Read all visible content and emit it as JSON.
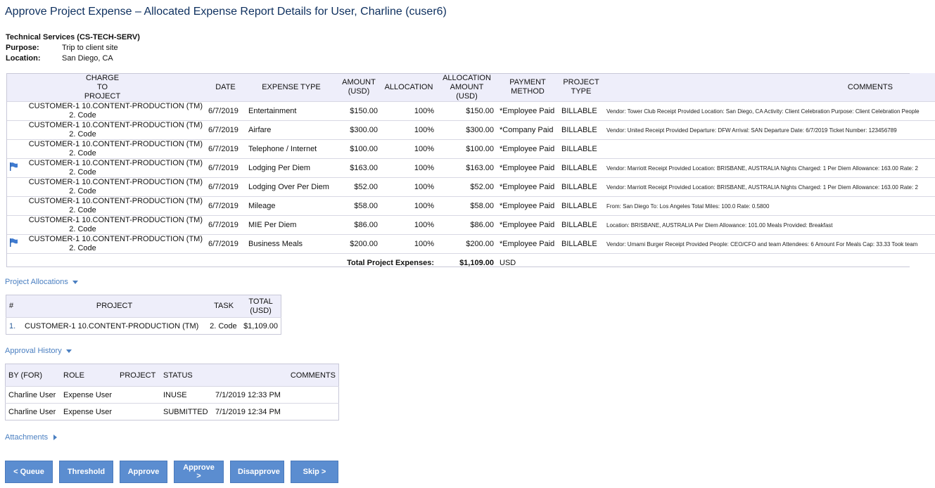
{
  "page": {
    "title": "Approve Project Expense – Allocated Expense Report Details for User, Charline (cuser6)"
  },
  "info": {
    "org": "Technical Services (CS-TECH-SERV)",
    "purpose_label": "Purpose:",
    "purpose": "Trip to client site",
    "location_label": "Location:",
    "location": "San Diego, CA"
  },
  "expense_table": {
    "headers": {
      "charge": "CHARGE TO PROJECT",
      "date": "DATE",
      "type": "EXPENSE TYPE",
      "amount": "AMOUNT (USD)",
      "allocation": "ALLOCATION",
      "alloc_amount": "ALLOCATION AMOUNT (USD)",
      "payment": "PAYMENT METHOD",
      "project_type": "PROJECT TYPE",
      "comments": "COMMENTS"
    },
    "rows": [
      {
        "flag": false,
        "project": "CUSTOMER-1 10.CONTENT-PRODUCTION (TM)",
        "task": "2. Code",
        "date": "6/7/2019",
        "type": "Entertainment",
        "amount": "$150.00",
        "allocation": "100%",
        "alloc_amount": "$150.00",
        "payment": "*Employee Paid",
        "project_type": "BILLABLE",
        "comments": "Vendor: Tower Club Receipt Provided Location: San Diego, CA Activity: Client Celebration Purpose: Client Celebration People"
      },
      {
        "flag": false,
        "project": "CUSTOMER-1 10.CONTENT-PRODUCTION (TM)",
        "task": "2. Code",
        "date": "6/7/2019",
        "type": "Airfare",
        "amount": "$300.00",
        "allocation": "100%",
        "alloc_amount": "$300.00",
        "payment": "*Company Paid",
        "project_type": "BILLABLE",
        "comments": "Vendor: United Receipt Provided Departure: DFW Arrival: SAN Departure Date: 6/7/2019 Ticket Number: 123456789"
      },
      {
        "flag": false,
        "project": "CUSTOMER-1 10.CONTENT-PRODUCTION (TM)",
        "task": "2. Code",
        "date": "6/7/2019",
        "type": "Telephone / Internet",
        "amount": "$100.00",
        "allocation": "100%",
        "alloc_amount": "$100.00",
        "payment": "*Employee Paid",
        "project_type": "BILLABLE",
        "comments": ""
      },
      {
        "flag": true,
        "project": "CUSTOMER-1 10.CONTENT-PRODUCTION (TM)",
        "task": "2. Code",
        "date": "6/7/2019",
        "type": "Lodging Per Diem",
        "amount": "$163.00",
        "allocation": "100%",
        "alloc_amount": "$163.00",
        "payment": "*Employee Paid",
        "project_type": "BILLABLE",
        "comments": "Vendor: Marriott Receipt Provided Location: BRISBANE, AUSTRALIA Nights Charged: 1 Per Diem Allowance: 163.00 Rate: 2"
      },
      {
        "flag": false,
        "project": "CUSTOMER-1 10.CONTENT-PRODUCTION (TM)",
        "task": "2. Code",
        "date": "6/7/2019",
        "type": "Lodging Over Per Diem",
        "amount": "$52.00",
        "allocation": "100%",
        "alloc_amount": "$52.00",
        "payment": "*Employee Paid",
        "project_type": "BILLABLE",
        "comments": "Vendor: Marriott Receipt Provided Location: BRISBANE, AUSTRALIA Nights Charged: 1 Per Diem Allowance: 163.00 Rate: 2"
      },
      {
        "flag": false,
        "project": "CUSTOMER-1 10.CONTENT-PRODUCTION (TM)",
        "task": "2. Code",
        "date": "6/7/2019",
        "type": "Mileage",
        "amount": "$58.00",
        "allocation": "100%",
        "alloc_amount": "$58.00",
        "payment": "*Employee Paid",
        "project_type": "BILLABLE",
        "comments": "From: San Diego To: Los Angeles Total Miles: 100.0 Rate: 0.5800"
      },
      {
        "flag": false,
        "project": "CUSTOMER-1 10.CONTENT-PRODUCTION (TM)",
        "task": "2. Code",
        "date": "6/7/2019",
        "type": "MIE Per Diem",
        "amount": "$86.00",
        "allocation": "100%",
        "alloc_amount": "$86.00",
        "payment": "*Employee Paid",
        "project_type": "BILLABLE",
        "comments": "Location: BRISBANE, AUSTRALIA Per Diem Allowance: 101.00 Meals Provided: Breakfast"
      },
      {
        "flag": true,
        "project": "CUSTOMER-1 10.CONTENT-PRODUCTION (TM)",
        "task": "2. Code",
        "date": "6/7/2019",
        "type": "Business Meals",
        "amount": "$200.00",
        "allocation": "100%",
        "alloc_amount": "$200.00",
        "payment": "*Employee Paid",
        "project_type": "BILLABLE",
        "comments": "Vendor: Umami Burger Receipt Provided People: CEO/CFO and team Attendees: 6 Amount For Meals Cap: 33.33 Took team"
      }
    ],
    "total_label": "Total Project Expenses:",
    "total": "$1,109.00",
    "currency": "USD"
  },
  "allocations": {
    "link": "Project Allocations",
    "headers": {
      "idx": "#",
      "project": "PROJECT",
      "task": "TASK",
      "total": "TOTAL (USD)"
    },
    "rows": [
      {
        "idx": "1.",
        "project": "CUSTOMER-1 10.CONTENT-PRODUCTION (TM)",
        "task": "2. Code",
        "total": "$1,109.00"
      }
    ]
  },
  "history": {
    "link": "Approval History",
    "headers": {
      "by": "BY (FOR)",
      "role": "ROLE",
      "project": "PROJECT",
      "status": "STATUS",
      "comments": "COMMENTS"
    },
    "rows": [
      {
        "by": "Charline User",
        "role": "Expense User",
        "project": "",
        "status": "INUSE",
        "date": "7/1/2019 12:33 PM"
      },
      {
        "by": "Charline User",
        "role": "Expense User",
        "project": "",
        "status": "SUBMITTED",
        "date": "7/1/2019 12:34 PM"
      }
    ]
  },
  "attachments": {
    "link": "Attachments"
  },
  "buttons": {
    "queue": "< Queue",
    "threshold": "Threshold",
    "approve": "Approve",
    "approve_next": "Approve >",
    "disapprove": "Disapprove",
    "skip": "Skip >"
  },
  "colors": {
    "accent": "#5b8dd0",
    "link": "#4a7fc1",
    "header_bg": "#eeeefa",
    "title": "#0d2f5e"
  }
}
